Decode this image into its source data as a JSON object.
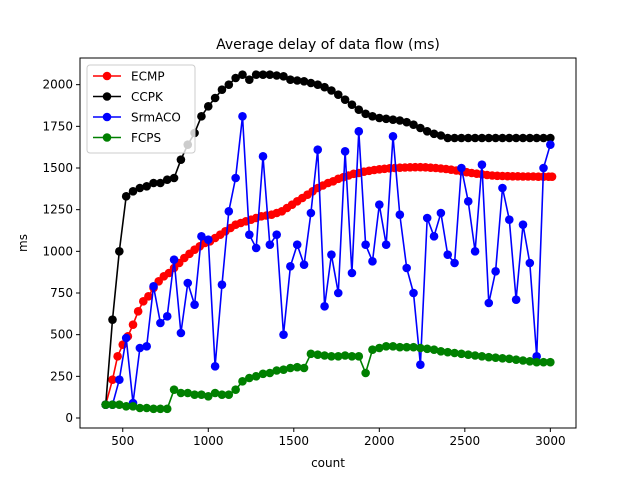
{
  "chart_data": {
    "type": "line",
    "title": "Average delay of data flow (ms)",
    "xlabel": "count",
    "ylabel": "ms",
    "xlim": [
      250,
      3150
    ],
    "ylim": [
      -60,
      2160
    ],
    "xticks": [
      500,
      1000,
      1500,
      2000,
      2500,
      3000
    ],
    "yticks": [
      0,
      250,
      500,
      750,
      1000,
      1250,
      1500,
      1750,
      2000
    ],
    "legend_position": "upper-left",
    "series": [
      {
        "name": "ECMP",
        "color": "#ff0000",
        "points": [
          [
            400,
            80
          ],
          [
            440,
            230
          ],
          [
            470,
            370
          ],
          [
            500,
            440
          ],
          [
            530,
            490
          ],
          [
            560,
            560
          ],
          [
            590,
            640
          ],
          [
            620,
            700
          ],
          [
            650,
            730
          ],
          [
            680,
            780
          ],
          [
            710,
            820
          ],
          [
            740,
            850
          ],
          [
            770,
            870
          ],
          [
            800,
            900
          ],
          [
            830,
            930
          ],
          [
            860,
            960
          ],
          [
            890,
            985
          ],
          [
            920,
            1010
          ],
          [
            950,
            1030
          ],
          [
            980,
            1050
          ],
          [
            1010,
            1060
          ],
          [
            1040,
            1080
          ],
          [
            1070,
            1100
          ],
          [
            1100,
            1120
          ],
          [
            1130,
            1140
          ],
          [
            1160,
            1160
          ],
          [
            1190,
            1170
          ],
          [
            1220,
            1180
          ],
          [
            1250,
            1190
          ],
          [
            1280,
            1200
          ],
          [
            1310,
            1210
          ],
          [
            1340,
            1215
          ],
          [
            1370,
            1220
          ],
          [
            1400,
            1230
          ],
          [
            1430,
            1240
          ],
          [
            1460,
            1260
          ],
          [
            1490,
            1280
          ],
          [
            1520,
            1300
          ],
          [
            1550,
            1320
          ],
          [
            1580,
            1340
          ],
          [
            1610,
            1360
          ],
          [
            1640,
            1380
          ],
          [
            1670,
            1395
          ],
          [
            1700,
            1410
          ],
          [
            1730,
            1420
          ],
          [
            1760,
            1435
          ],
          [
            1790,
            1445
          ],
          [
            1820,
            1455
          ],
          [
            1850,
            1465
          ],
          [
            1880,
            1470
          ],
          [
            1910,
            1478
          ],
          [
            1940,
            1483
          ],
          [
            1970,
            1488
          ],
          [
            2000,
            1492
          ],
          [
            2030,
            1495
          ],
          [
            2060,
            1498
          ],
          [
            2090,
            1500
          ],
          [
            2120,
            1502
          ],
          [
            2150,
            1503
          ],
          [
            2180,
            1504
          ],
          [
            2210,
            1505
          ],
          [
            2240,
            1505
          ],
          [
            2270,
            1504
          ],
          [
            2300,
            1502
          ],
          [
            2330,
            1500
          ],
          [
            2360,
            1497
          ],
          [
            2390,
            1494
          ],
          [
            2420,
            1490
          ],
          [
            2450,
            1485
          ],
          [
            2480,
            1480
          ],
          [
            2510,
            1475
          ],
          [
            2540,
            1470
          ],
          [
            2570,
            1466
          ],
          [
            2600,
            1462
          ],
          [
            2630,
            1458
          ],
          [
            2660,
            1455
          ],
          [
            2690,
            1453
          ],
          [
            2720,
            1452
          ],
          [
            2750,
            1451
          ],
          [
            2780,
            1450
          ],
          [
            2810,
            1450
          ],
          [
            2840,
            1449
          ],
          [
            2870,
            1449
          ],
          [
            2900,
            1449
          ],
          [
            2930,
            1448
          ],
          [
            2960,
            1448
          ],
          [
            2990,
            1448
          ],
          [
            3010,
            1448
          ]
        ]
      },
      {
        "name": "CCPK",
        "color": "#000000",
        "points": [
          [
            400,
            80
          ],
          [
            440,
            590
          ],
          [
            480,
            1000
          ],
          [
            520,
            1330
          ],
          [
            560,
            1360
          ],
          [
            600,
            1380
          ],
          [
            640,
            1390
          ],
          [
            680,
            1410
          ],
          [
            720,
            1410
          ],
          [
            760,
            1430
          ],
          [
            800,
            1440
          ],
          [
            840,
            1550
          ],
          [
            880,
            1640
          ],
          [
            920,
            1710
          ],
          [
            960,
            1810
          ],
          [
            1000,
            1870
          ],
          [
            1040,
            1920
          ],
          [
            1080,
            1970
          ],
          [
            1120,
            2000
          ],
          [
            1160,
            2040
          ],
          [
            1200,
            2060
          ],
          [
            1240,
            2030
          ],
          [
            1280,
            2060
          ],
          [
            1320,
            2060
          ],
          [
            1360,
            2060
          ],
          [
            1400,
            2055
          ],
          [
            1440,
            2050
          ],
          [
            1480,
            2030
          ],
          [
            1520,
            2025
          ],
          [
            1560,
            2020
          ],
          [
            1600,
            2010
          ],
          [
            1640,
            2000
          ],
          [
            1680,
            1985
          ],
          [
            1720,
            1965
          ],
          [
            1760,
            1940
          ],
          [
            1800,
            1910
          ],
          [
            1840,
            1880
          ],
          [
            1880,
            1850
          ],
          [
            1920,
            1825
          ],
          [
            1960,
            1810
          ],
          [
            2000,
            1800
          ],
          [
            2040,
            1795
          ],
          [
            2080,
            1790
          ],
          [
            2120,
            1785
          ],
          [
            2160,
            1775
          ],
          [
            2200,
            1760
          ],
          [
            2240,
            1740
          ],
          [
            2280,
            1720
          ],
          [
            2320,
            1705
          ],
          [
            2360,
            1695
          ],
          [
            2400,
            1680
          ],
          [
            2440,
            1680
          ],
          [
            2480,
            1680
          ],
          [
            2520,
            1680
          ],
          [
            2560,
            1680
          ],
          [
            2600,
            1680
          ],
          [
            2640,
            1680
          ],
          [
            2680,
            1680
          ],
          [
            2720,
            1680
          ],
          [
            2760,
            1680
          ],
          [
            2800,
            1680
          ],
          [
            2840,
            1680
          ],
          [
            2880,
            1680
          ],
          [
            2920,
            1680
          ],
          [
            2960,
            1680
          ],
          [
            3000,
            1680
          ]
        ]
      },
      {
        "name": "SrmACO",
        "color": "#0000ff",
        "points": [
          [
            400,
            80
          ],
          [
            440,
            80
          ],
          [
            480,
            230
          ],
          [
            520,
            480
          ],
          [
            560,
            90
          ],
          [
            600,
            420
          ],
          [
            640,
            430
          ],
          [
            680,
            790
          ],
          [
            720,
            570
          ],
          [
            760,
            610
          ],
          [
            800,
            950
          ],
          [
            840,
            510
          ],
          [
            880,
            810
          ],
          [
            920,
            680
          ],
          [
            960,
            1090
          ],
          [
            1000,
            1070
          ],
          [
            1040,
            310
          ],
          [
            1080,
            800
          ],
          [
            1120,
            1240
          ],
          [
            1160,
            1440
          ],
          [
            1200,
            1810
          ],
          [
            1240,
            1100
          ],
          [
            1280,
            1020
          ],
          [
            1320,
            1570
          ],
          [
            1360,
            1040
          ],
          [
            1400,
            1100
          ],
          [
            1440,
            500
          ],
          [
            1480,
            910
          ],
          [
            1520,
            1040
          ],
          [
            1560,
            920
          ],
          [
            1600,
            1230
          ],
          [
            1640,
            1610
          ],
          [
            1680,
            670
          ],
          [
            1720,
            980
          ],
          [
            1760,
            750
          ],
          [
            1800,
            1600
          ],
          [
            1840,
            870
          ],
          [
            1880,
            1720
          ],
          [
            1920,
            1040
          ],
          [
            1960,
            940
          ],
          [
            2000,
            1280
          ],
          [
            2040,
            1040
          ],
          [
            2080,
            1690
          ],
          [
            2120,
            1220
          ],
          [
            2160,
            900
          ],
          [
            2200,
            750
          ],
          [
            2240,
            320
          ],
          [
            2280,
            1200
          ],
          [
            2320,
            1090
          ],
          [
            2360,
            1230
          ],
          [
            2400,
            980
          ],
          [
            2440,
            930
          ],
          [
            2480,
            1500
          ],
          [
            2520,
            1300
          ],
          [
            2560,
            1000
          ],
          [
            2600,
            1520
          ],
          [
            2640,
            690
          ],
          [
            2680,
            880
          ],
          [
            2720,
            1380
          ],
          [
            2760,
            1190
          ],
          [
            2800,
            710
          ],
          [
            2840,
            1160
          ],
          [
            2880,
            930
          ],
          [
            2920,
            370
          ],
          [
            2960,
            1500
          ],
          [
            3000,
            1640
          ]
        ]
      },
      {
        "name": "FCPS",
        "color": "#008000",
        "points": [
          [
            400,
            80
          ],
          [
            440,
            80
          ],
          [
            480,
            80
          ],
          [
            520,
            70
          ],
          [
            560,
            70
          ],
          [
            600,
            60
          ],
          [
            640,
            60
          ],
          [
            680,
            55
          ],
          [
            720,
            55
          ],
          [
            760,
            55
          ],
          [
            800,
            170
          ],
          [
            840,
            150
          ],
          [
            880,
            150
          ],
          [
            920,
            140
          ],
          [
            960,
            140
          ],
          [
            1000,
            130
          ],
          [
            1040,
            150
          ],
          [
            1080,
            140
          ],
          [
            1120,
            140
          ],
          [
            1160,
            170
          ],
          [
            1200,
            220
          ],
          [
            1240,
            240
          ],
          [
            1280,
            250
          ],
          [
            1320,
            265
          ],
          [
            1360,
            270
          ],
          [
            1400,
            285
          ],
          [
            1440,
            290
          ],
          [
            1480,
            300
          ],
          [
            1520,
            305
          ],
          [
            1560,
            300
          ],
          [
            1600,
            385
          ],
          [
            1640,
            380
          ],
          [
            1680,
            375
          ],
          [
            1720,
            370
          ],
          [
            1760,
            370
          ],
          [
            1800,
            375
          ],
          [
            1840,
            370
          ],
          [
            1880,
            370
          ],
          [
            1920,
            270
          ],
          [
            1960,
            410
          ],
          [
            2000,
            420
          ],
          [
            2040,
            430
          ],
          [
            2080,
            430
          ],
          [
            2120,
            425
          ],
          [
            2160,
            425
          ],
          [
            2200,
            425
          ],
          [
            2240,
            420
          ],
          [
            2280,
            415
          ],
          [
            2320,
            410
          ],
          [
            2360,
            400
          ],
          [
            2400,
            395
          ],
          [
            2440,
            390
          ],
          [
            2480,
            385
          ],
          [
            2520,
            380
          ],
          [
            2560,
            375
          ],
          [
            2600,
            370
          ],
          [
            2640,
            365
          ],
          [
            2680,
            362
          ],
          [
            2720,
            358
          ],
          [
            2760,
            355
          ],
          [
            2800,
            350
          ],
          [
            2840,
            345
          ],
          [
            2880,
            340
          ],
          [
            2920,
            335
          ],
          [
            2960,
            335
          ],
          [
            3000,
            335
          ]
        ]
      }
    ]
  }
}
